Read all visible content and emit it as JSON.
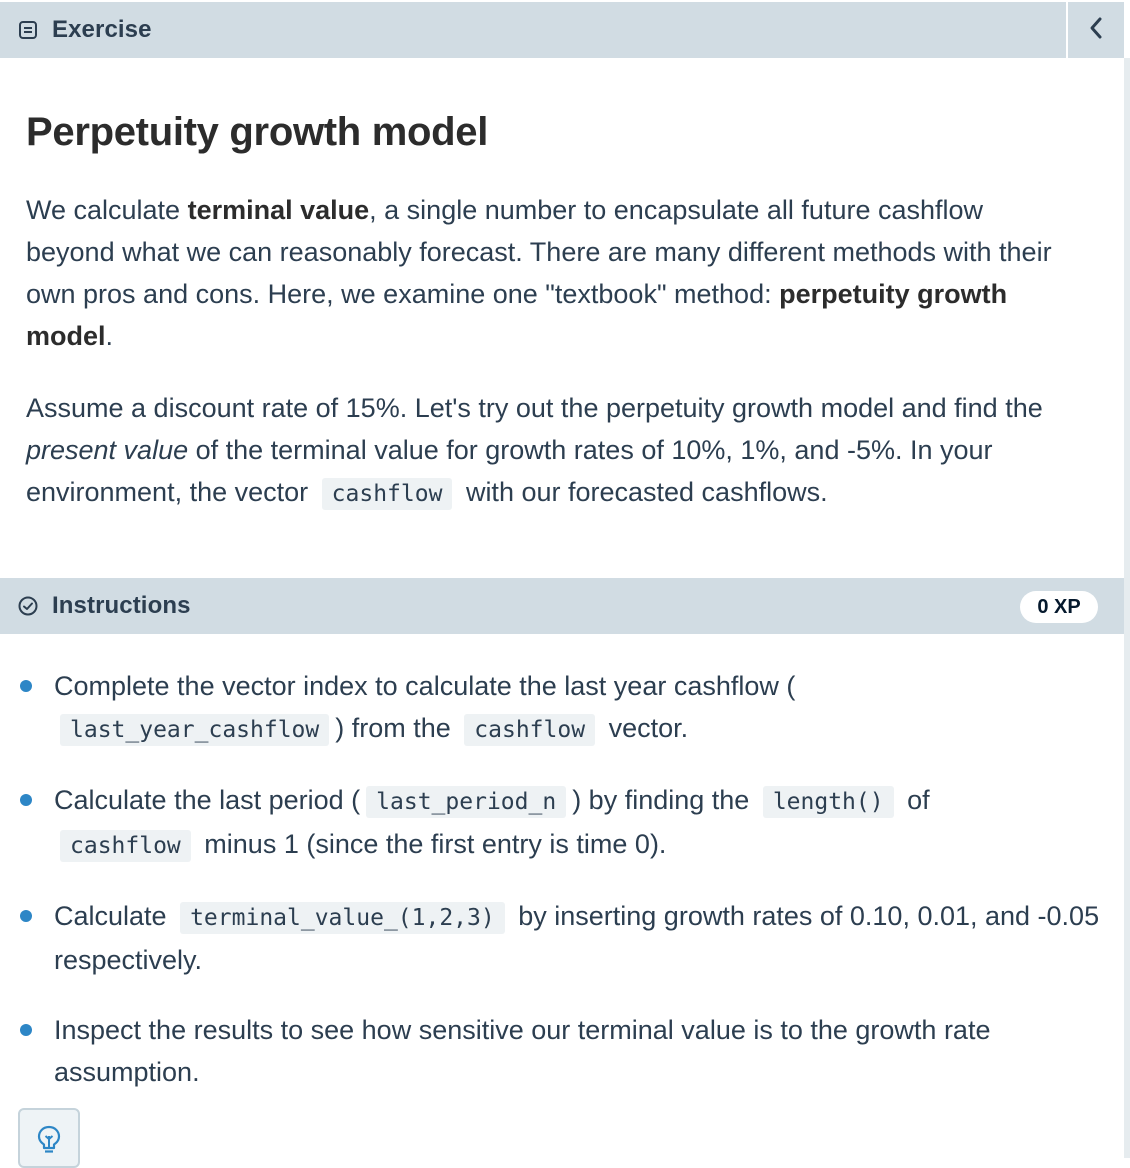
{
  "exercise": {
    "header_label": "Exercise",
    "title": "Perpetuity growth model",
    "para1": {
      "t1": "We calculate ",
      "b1": "terminal value",
      "t2": ", a single number to encapsulate all future cashflow beyond what we can reasonably forecast. There are many different methods with their own pros and cons. Here, we examine one \"textbook\" method: ",
      "b2": "perpetuity growth model",
      "t3": "."
    },
    "para2": {
      "t1": "Assume a discount rate of 15%. Let's try out the perpetuity growth model and find the ",
      "i1": "present value",
      "t2": " of the terminal value for growth rates of 10%, 1%, and -5%. In your environment, the vector ",
      "c1": "cashflow",
      "t3": " with our forecasted cashflows."
    }
  },
  "instructions": {
    "header_label": "Instructions",
    "xp": "0 XP",
    "steps": [
      {
        "t1": "Complete the vector index to calculate the last year cashflow (",
        "c1": "last_year_cashflow",
        "t2": ") from the",
        "c2": "cashflow",
        "t3": "vector."
      },
      {
        "t1": "Calculate the last period (",
        "c1": "last_period_n",
        "t2": ") by finding the",
        "c2": "length()",
        "t3": "of",
        "c3": "cashflow",
        "t4": "minus 1 (since the first entry is time 0)."
      },
      {
        "t1": "Calculate",
        "c1": "terminal_value_(1,2,3)",
        "t2": "by inserting growth rates of 0.10, 0.01, and -0.05 respectively."
      },
      {
        "t1": "Inspect the results to see how sensitive our terminal value is to the growth rate assumption."
      }
    ]
  },
  "colors": {
    "header_bg": "#d1dce3",
    "bullet": "#2d86c6",
    "code_bg": "#eef2f4"
  },
  "icons": {
    "exercise": "document-icon",
    "instructions": "check-circle-icon",
    "collapse": "chevron-left-icon",
    "hint": "lightbulb-icon"
  }
}
